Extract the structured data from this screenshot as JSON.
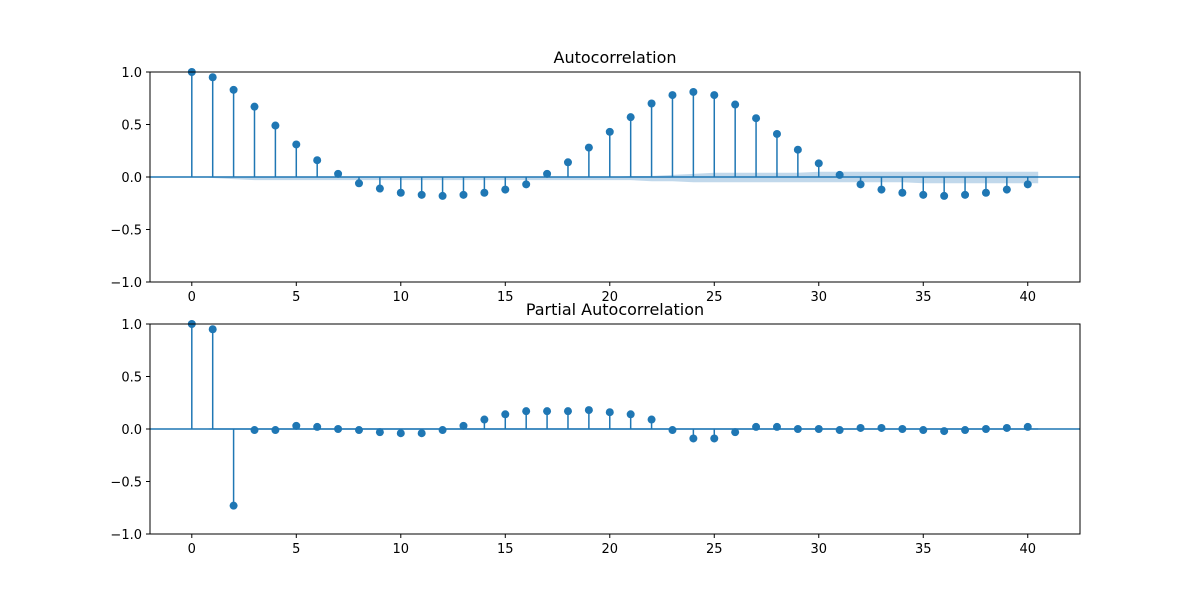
{
  "chart_data": [
    {
      "type": "stem",
      "title": "Autocorrelation",
      "xlabel": "",
      "ylabel": "",
      "xlim": [
        -2,
        42.5
      ],
      "ylim": [
        -1.0,
        1.0
      ],
      "x_ticks": [
        "0",
        "5",
        "10",
        "15",
        "20",
        "25",
        "30",
        "35",
        "40"
      ],
      "y_ticks": [
        "1.0",
        "0.5",
        "0.0",
        "−0.5",
        "−1.0"
      ],
      "grid": false,
      "lags": [
        0,
        1,
        2,
        3,
        4,
        5,
        6,
        7,
        8,
        9,
        10,
        11,
        12,
        13,
        14,
        15,
        16,
        17,
        18,
        19,
        20,
        21,
        22,
        23,
        24,
        25,
        26,
        27,
        28,
        29,
        30,
        31,
        32,
        33,
        34,
        35,
        36,
        37,
        38,
        39,
        40
      ],
      "values": [
        1.0,
        0.95,
        0.83,
        0.67,
        0.49,
        0.31,
        0.16,
        0.03,
        -0.06,
        -0.11,
        -0.15,
        -0.17,
        -0.18,
        -0.17,
        -0.15,
        -0.12,
        -0.07,
        0.03,
        0.14,
        0.28,
        0.43,
        0.57,
        0.7,
        0.78,
        0.81,
        0.78,
        0.69,
        0.56,
        0.41,
        0.26,
        0.13,
        0.02,
        -0.07,
        -0.12,
        -0.15,
        -0.17,
        -0.18,
        -0.17,
        -0.15,
        -0.12,
        -0.07
      ],
      "conf_band_upper": [
        0.0,
        0.0,
        0.0,
        0.0,
        0.0,
        0.0,
        0.0,
        0.0,
        0.0,
        0.0,
        0.0,
        0.0,
        0.0,
        0.0,
        0.0,
        0.0,
        0.0,
        0.0,
        0.0,
        0.0,
        0.0,
        0.01,
        0.01,
        0.02,
        0.03,
        0.04,
        0.04,
        0.04,
        0.04,
        0.04,
        0.05,
        0.05,
        0.05,
        0.05,
        0.05,
        0.05,
        0.05,
        0.05,
        0.05,
        0.05,
        0.05
      ],
      "conf_band_lower": [
        0.0,
        -0.01,
        -0.02,
        -0.03,
        -0.03,
        -0.03,
        -0.03,
        -0.03,
        -0.03,
        -0.03,
        -0.03,
        -0.03,
        -0.03,
        -0.03,
        -0.03,
        -0.03,
        -0.03,
        -0.03,
        -0.03,
        -0.03,
        -0.03,
        -0.03,
        -0.04,
        -0.04,
        -0.05,
        -0.05,
        -0.05,
        -0.05,
        -0.05,
        -0.05,
        -0.05,
        -0.05,
        -0.05,
        -0.05,
        -0.05,
        -0.06,
        -0.06,
        -0.06,
        -0.06,
        -0.06,
        -0.06
      ],
      "color": "#1f77b4",
      "band_color": "#a6c8e3"
    },
    {
      "type": "stem",
      "title": "Partial Autocorrelation",
      "xlabel": "",
      "ylabel": "",
      "xlim": [
        -2,
        42.5
      ],
      "ylim": [
        -1.0,
        1.0
      ],
      "x_ticks": [
        "0",
        "5",
        "10",
        "15",
        "20",
        "25",
        "30",
        "35",
        "40"
      ],
      "y_ticks": [
        "1.0",
        "0.5",
        "0.0",
        "−0.5",
        "−1.0"
      ],
      "grid": false,
      "lags": [
        0,
        1,
        2,
        3,
        4,
        5,
        6,
        7,
        8,
        9,
        10,
        11,
        12,
        13,
        14,
        15,
        16,
        17,
        18,
        19,
        20,
        21,
        22,
        23,
        24,
        25,
        26,
        27,
        28,
        29,
        30,
        31,
        32,
        33,
        34,
        35,
        36,
        37,
        38,
        39,
        40
      ],
      "values": [
        1.0,
        0.95,
        -0.73,
        -0.01,
        -0.01,
        0.03,
        0.02,
        0.0,
        -0.01,
        -0.03,
        -0.04,
        -0.04,
        -0.01,
        0.03,
        0.09,
        0.14,
        0.17,
        0.17,
        0.17,
        0.18,
        0.16,
        0.14,
        0.09,
        -0.01,
        -0.09,
        -0.09,
        -0.03,
        0.02,
        0.02,
        0.0,
        0.0,
        -0.01,
        0.01,
        0.01,
        0.0,
        -0.01,
        -0.02,
        -0.01,
        0.0,
        0.01,
        0.02
      ],
      "conf_band_upper": [
        0.0,
        0.01,
        0.01,
        0.01,
        0.01,
        0.01,
        0.01,
        0.01,
        0.01,
        0.01,
        0.01,
        0.01,
        0.01,
        0.01,
        0.01,
        0.01,
        0.01,
        0.01,
        0.01,
        0.01,
        0.01,
        0.01,
        0.01,
        0.01,
        0.01,
        0.01,
        0.01,
        0.01,
        0.01,
        0.01,
        0.01,
        0.01,
        0.01,
        0.01,
        0.01,
        0.01,
        0.01,
        0.01,
        0.01,
        0.01,
        0.01
      ],
      "conf_band_lower": [
        0.0,
        -0.01,
        -0.01,
        -0.01,
        -0.01,
        -0.01,
        -0.01,
        -0.01,
        -0.01,
        -0.01,
        -0.01,
        -0.01,
        -0.01,
        -0.01,
        -0.01,
        -0.01,
        -0.01,
        -0.01,
        -0.01,
        -0.01,
        -0.01,
        -0.01,
        -0.01,
        -0.01,
        -0.01,
        -0.01,
        -0.01,
        -0.01,
        -0.01,
        -0.01,
        -0.01,
        -0.01,
        -0.01,
        -0.01,
        -0.01,
        -0.01,
        -0.01,
        -0.01,
        -0.01,
        -0.01,
        -0.01
      ],
      "color": "#1f77b4",
      "band_color": "#a6c8e3"
    }
  ]
}
